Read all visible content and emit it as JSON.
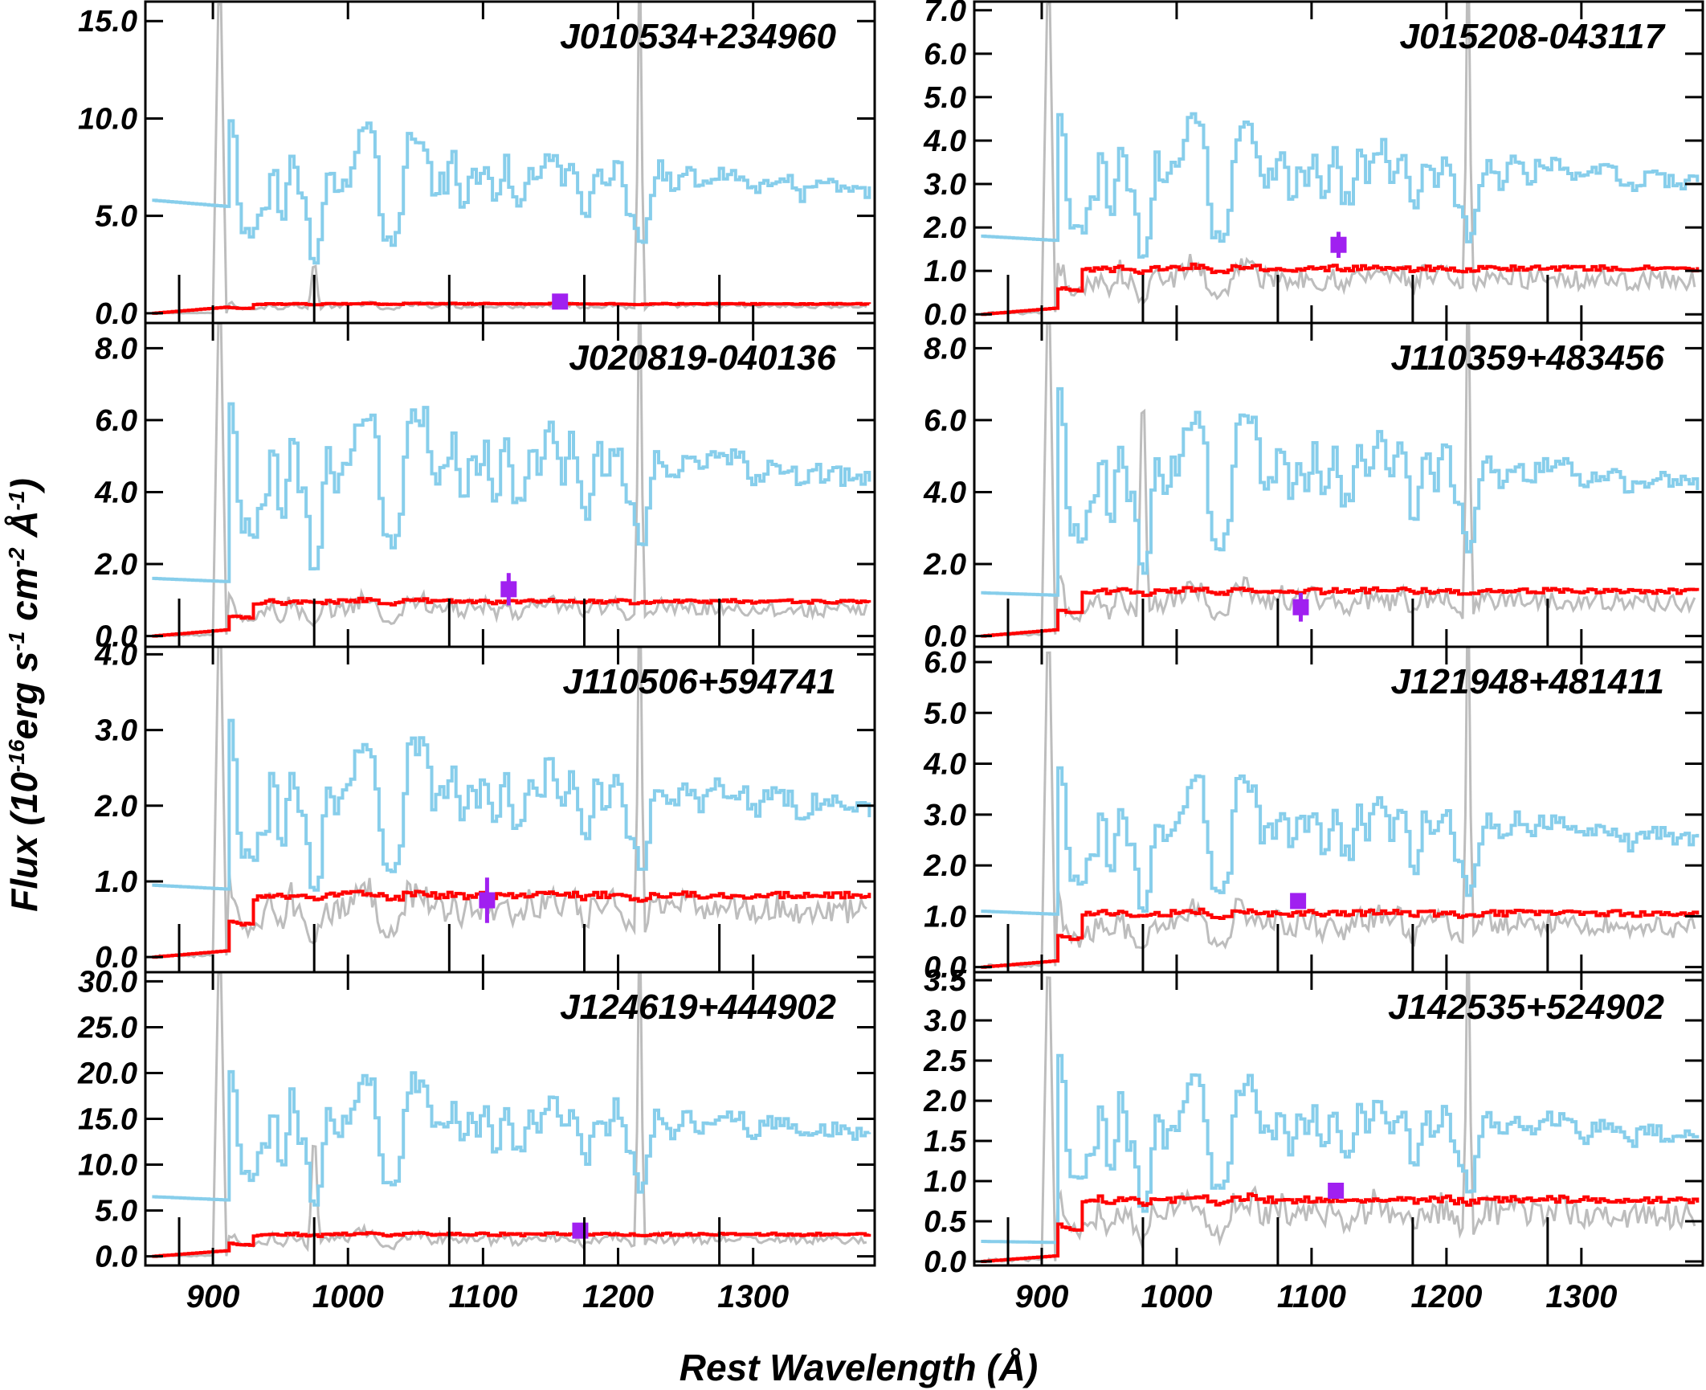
{
  "figure": {
    "xlabel": "Rest Wavelength (Å)",
    "ylabel_prefix": "Flux (10",
    "ylabel_exp1": "-16",
    "ylabel_mid1": "erg s",
    "ylabel_exp2": "-1",
    "ylabel_mid2": " cm",
    "ylabel_exp3": "-2",
    "ylabel_mid3": " Å",
    "ylabel_exp4": "-1",
    "ylabel_suffix": ")",
    "colors": {
      "composite": "#87ceeb",
      "model": "#ff0000",
      "observed": "#bdbdbd",
      "photometry": "#a020f0",
      "frame": "#000000"
    },
    "xticks": [
      900,
      1000,
      1100,
      1200,
      1300
    ],
    "xlim": [
      850,
      1390
    ]
  },
  "chart_data": [
    {
      "type": "line",
      "title": "J010534+234960",
      "xlabel": "Rest Wavelength (Å)",
      "ylabel": "Flux (10^-16 erg s^-1 cm^-2 Å^-1)",
      "xlim": [
        850,
        1390
      ],
      "ylim": [
        -0.5,
        16.0
      ],
      "yticks": [
        0.0,
        5.0,
        10.0,
        15.0
      ],
      "ytick_labels": [
        "0.0",
        "5.0",
        "10.0",
        "15.0"
      ],
      "composite_level": 9.0,
      "composite_continuum": 5.8,
      "model_level": 0.5,
      "photometry": {
        "x": 1157,
        "y": 0.6,
        "yerr": 0.2
      },
      "label_side": "right"
    },
    {
      "type": "line",
      "title": "J015208-043117",
      "xlabel": "Rest Wavelength (Å)",
      "ylabel": "Flux (10^-16 erg s^-1 cm^-2 Å^-1)",
      "xlim": [
        850,
        1390
      ],
      "ylim": [
        -0.2,
        7.2
      ],
      "yticks": [
        0.0,
        1.0,
        2.0,
        3.0,
        4.0,
        5.0,
        6.0,
        7.0
      ],
      "ytick_labels": [
        "0.0",
        "1.0",
        "2.0",
        "3.0",
        "4.0",
        "5.0",
        "6.0",
        "7.0"
      ],
      "composite_level": 4.3,
      "composite_continuum": 1.8,
      "model_level": 1.1,
      "photometry": {
        "x": 1120,
        "y": 1.6,
        "yerr": 0.3
      },
      "label_side": "right"
    },
    {
      "type": "line",
      "title": "J020819-040136",
      "xlabel": "Rest Wavelength (Å)",
      "ylabel": "Flux (10^-16 erg s^-1 cm^-2 Å^-1)",
      "xlim": [
        850,
        1390
      ],
      "ylim": [
        -0.3,
        8.7
      ],
      "yticks": [
        0.0,
        2.0,
        4.0,
        6.0,
        8.0
      ],
      "ytick_labels": [
        "0.0",
        "2.0",
        "4.0",
        "6.0",
        "8.0"
      ],
      "composite_level": 6.2,
      "composite_continuum": 1.6,
      "model_level": 1.0,
      "photometry": {
        "x": 1119,
        "y": 1.3,
        "yerr": 0.45
      },
      "label_side": "right"
    },
    {
      "type": "line",
      "title": "J110359+483456",
      "xlabel": "Rest Wavelength (Å)",
      "ylabel": "Flux (10^-16 erg s^-1 cm^-2 Å^-1)",
      "xlim": [
        850,
        1390
      ],
      "ylim": [
        -0.3,
        8.7
      ],
      "yticks": [
        0.0,
        2.0,
        4.0,
        6.0,
        8.0
      ],
      "ytick_labels": [
        "0.0",
        "2.0",
        "4.0",
        "6.0",
        "8.0"
      ],
      "composite_level": 6.0,
      "composite_continuum": 1.2,
      "model_level": 1.3,
      "photometry": {
        "x": 1092,
        "y": 0.8,
        "yerr": 0.4
      },
      "label_side": "right"
    },
    {
      "type": "line",
      "title": "J110506+594741",
      "xlabel": "Rest Wavelength (Å)",
      "ylabel": "Flux (10^-16 erg s^-1 cm^-2 Å^-1)",
      "xlim": [
        850,
        1390
      ],
      "ylim": [
        -0.2,
        4.1
      ],
      "yticks": [
        0.0,
        1.0,
        2.0,
        3.0,
        4.0
      ],
      "ytick_labels": [
        "0.0",
        "1.0",
        "2.0",
        "3.0",
        "4.0"
      ],
      "composite_level": 2.8,
      "composite_continuum": 0.95,
      "model_level": 0.85,
      "photometry": {
        "x": 1103,
        "y": 0.75,
        "yerr": 0.3
      },
      "label_side": "right"
    },
    {
      "type": "line",
      "title": "J121948+481411",
      "xlabel": "Rest Wavelength (Å)",
      "ylabel": "Flux (10^-16 erg s^-1 cm^-2 Å^-1)",
      "xlim": [
        850,
        1390
      ],
      "ylim": [
        -0.1,
        6.3
      ],
      "yticks": [
        0.0,
        1.0,
        2.0,
        3.0,
        4.0,
        5.0,
        6.0
      ],
      "ytick_labels": [
        "0.0",
        "1.0",
        "2.0",
        "3.0",
        "4.0",
        "5.0",
        "6.0"
      ],
      "composite_level": 3.6,
      "composite_continuum": 1.1,
      "model_level": 1.1,
      "photometry": {
        "x": 1090,
        "y": 1.3,
        "yerr": 0.12
      },
      "label_side": "right"
    },
    {
      "type": "line",
      "title": "J124619+444902",
      "xlabel": "Rest Wavelength (Å)",
      "ylabel": "Flux (10^-16 erg s^-1 cm^-2 Å^-1)",
      "xlim": [
        850,
        1390
      ],
      "ylim": [
        -1.0,
        31.0
      ],
      "yticks": [
        0.0,
        5.0,
        10.0,
        15.0,
        20.0,
        25.0,
        30.0
      ],
      "ytick_labels": [
        "0.0",
        "5.0",
        "10.0",
        "15.0",
        "20.0",
        "25.0",
        "30.0"
      ],
      "composite_level": 19.0,
      "composite_continuum": 6.5,
      "model_level": 2.5,
      "photometry": {
        "x": 1172,
        "y": 2.8,
        "yerr": 0.6
      },
      "label_side": "right"
    },
    {
      "type": "line",
      "title": "J142535+524902",
      "xlabel": "Rest Wavelength (Å)",
      "ylabel": "Flux (10^-16 erg s^-1 cm^-2 Å^-1)",
      "xlim": [
        850,
        1390
      ],
      "ylim": [
        -0.05,
        3.6
      ],
      "yticks": [
        0.0,
        0.5,
        1.0,
        1.5,
        2.0,
        2.5,
        3.0,
        3.5
      ],
      "ytick_labels": [
        "0.0",
        "0.5",
        "1.0",
        "1.5",
        "2.0",
        "2.5",
        "3.0",
        "3.5"
      ],
      "composite_level": 2.2,
      "composite_continuum": 0.25,
      "model_level": 0.8,
      "photometry": {
        "x": 1118,
        "y": 0.88,
        "yerr": 0.08
      },
      "label_side": "right"
    }
  ]
}
